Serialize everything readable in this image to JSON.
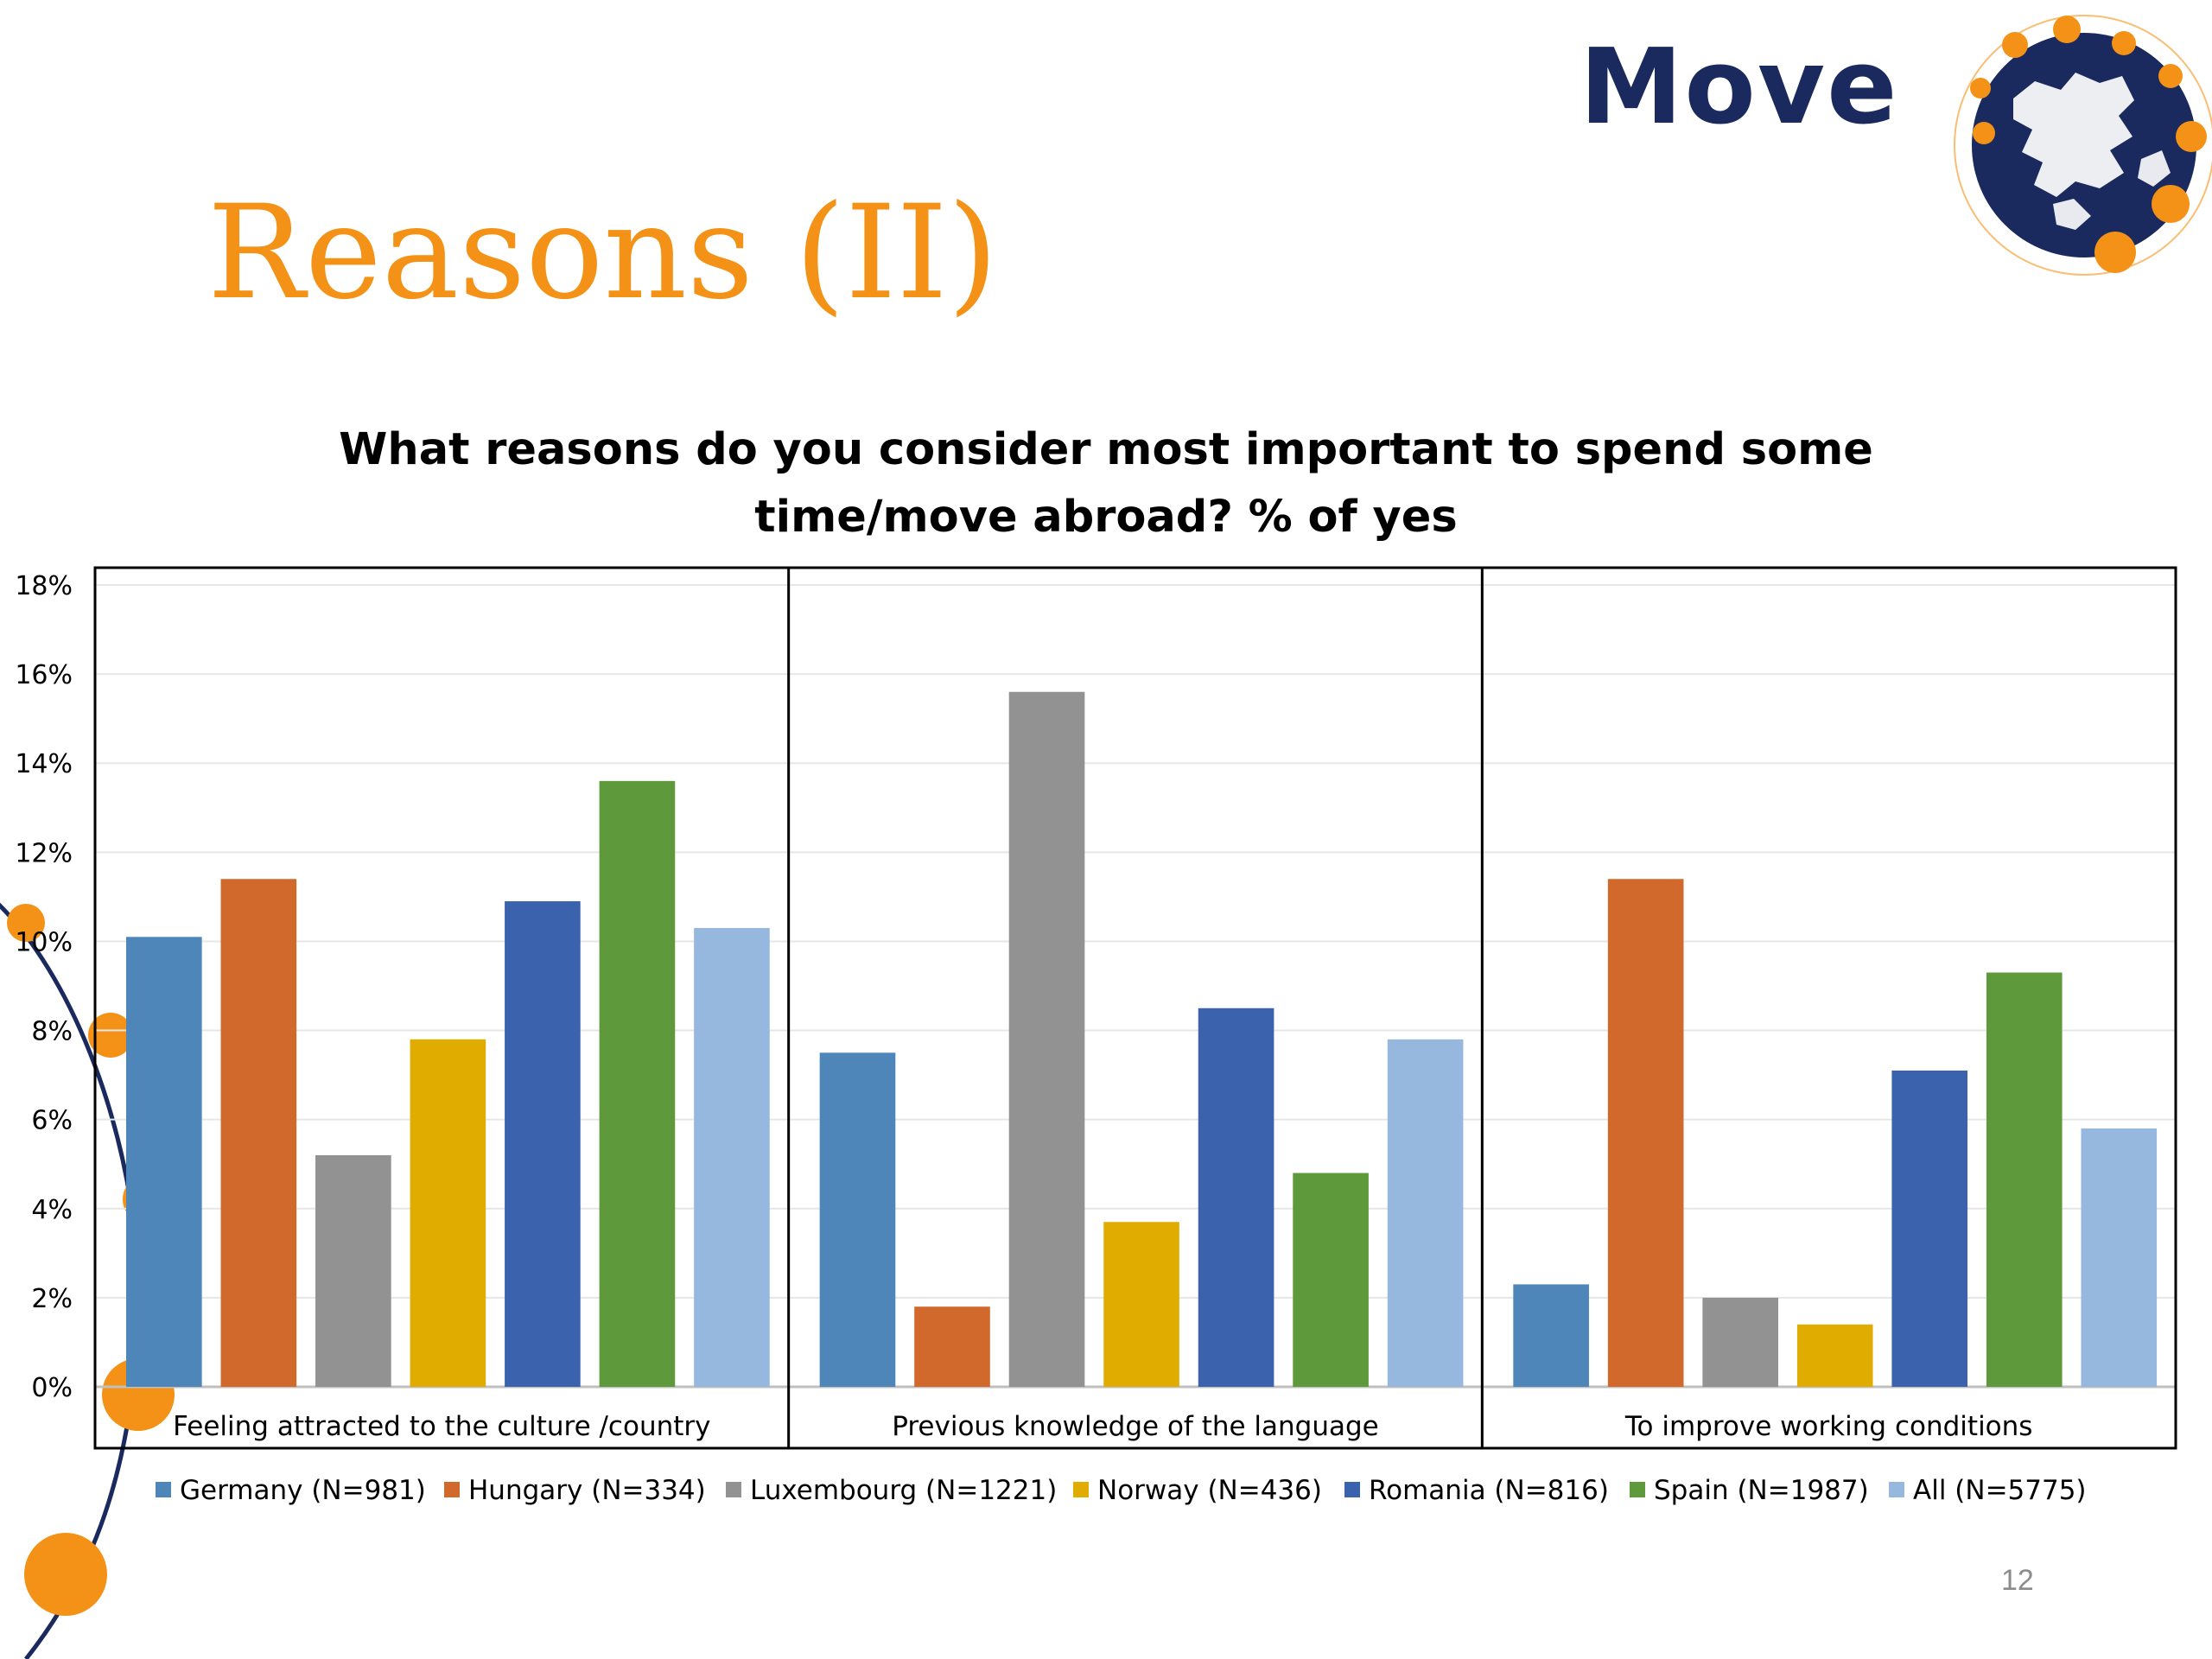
{
  "slide": {
    "title": "Reasons (II)",
    "page_number": "12",
    "logo_text": "Move"
  },
  "colors": {
    "title": "#F39217",
    "logo_navy": "#1B2A5E",
    "logo_orange": "#F39217"
  },
  "chart_data": {
    "type": "bar",
    "title": "What reasons do you consider most important to spend some time/move abroad?  % of yes",
    "xlabel": "",
    "ylabel": "",
    "ylim": [
      0,
      18
    ],
    "y_ticks": [
      "0%",
      "2%",
      "4%",
      "6%",
      "8%",
      "10%",
      "12%",
      "14%",
      "16%",
      "18%"
    ],
    "y_tick_values": [
      0,
      2,
      4,
      6,
      8,
      10,
      12,
      14,
      16,
      18
    ],
    "unit": "%",
    "grid": true,
    "legend_position": "bottom",
    "categories": [
      "Feeling attracted to the culture /country",
      "Previous knowledge of the language",
      "To improve working conditions"
    ],
    "series": [
      {
        "name": "Germany (N=981)",
        "color": "#4F86BA",
        "values": [
          10.1,
          7.5,
          2.3
        ]
      },
      {
        "name": "Hungary (N=334)",
        "color": "#D2692C",
        "values": [
          11.4,
          1.8,
          11.4
        ]
      },
      {
        "name": "Luxembourg (N=1221)",
        "color": "#929292",
        "values": [
          5.2,
          15.6,
          2.0
        ]
      },
      {
        "name": "Norway (N=436)",
        "color": "#E1AC00",
        "values": [
          7.8,
          3.7,
          1.4
        ]
      },
      {
        "name": "Romania (N=816)",
        "color": "#3A62AD",
        "values": [
          10.9,
          8.5,
          7.1
        ]
      },
      {
        "name": "Spain (N=1987)",
        "color": "#5E993B",
        "values": [
          13.6,
          4.8,
          9.3
        ]
      },
      {
        "name": "All (N=5775)",
        "color": "#96B8DF",
        "values": [
          10.3,
          7.8,
          5.8
        ]
      }
    ]
  }
}
